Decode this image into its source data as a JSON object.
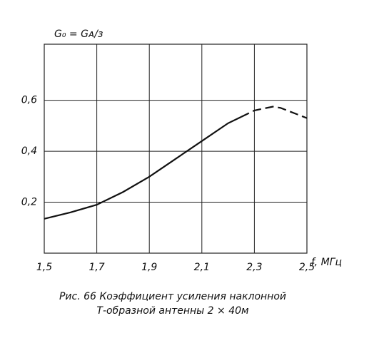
{
  "chart_data": {
    "type": "line",
    "ylabel": "G₀ = Gᴀ/з",
    "xlabel": "f, МГц",
    "caption": [
      "Рис. 66 Коэффициент усиления наклонной",
      "Т-образной антенны 2 × 40м"
    ],
    "x": [
      1.5,
      1.6,
      1.7,
      1.8,
      1.9,
      2.0,
      2.1,
      2.2,
      2.25,
      2.3,
      2.37,
      2.4,
      2.5
    ],
    "series": [
      {
        "color": "#111111",
        "line_style": "solid",
        "values": [
          0.135,
          0.16,
          0.19,
          0.24,
          0.3,
          0.37,
          0.44,
          0.51,
          0.535,
          null,
          null,
          null,
          null
        ]
      },
      {
        "color": "#111111",
        "line_style": "dashed",
        "values": [
          null,
          null,
          null,
          null,
          null,
          null,
          null,
          null,
          0.535,
          0.56,
          0.575,
          0.57,
          0.53
        ]
      }
    ],
    "xlim": [
      1.5,
      2.5
    ],
    "xticks": [
      {
        "value": 1.5,
        "label": "1,5"
      },
      {
        "value": 1.7,
        "label": "1,7"
      },
      {
        "value": 1.9,
        "label": "1,9"
      },
      {
        "value": 2.1,
        "label": "2,1"
      },
      {
        "value": 2.3,
        "label": "2,3"
      },
      {
        "value": 2.5,
        "label": "2,5"
      }
    ],
    "ylim": [
      0,
      0.82
    ],
    "yticks": [
      {
        "value": 0.2,
        "label": "0,2"
      },
      {
        "value": 0.4,
        "label": "0,4"
      },
      {
        "value": 0.6,
        "label": "0,6"
      }
    ],
    "grid": true
  }
}
